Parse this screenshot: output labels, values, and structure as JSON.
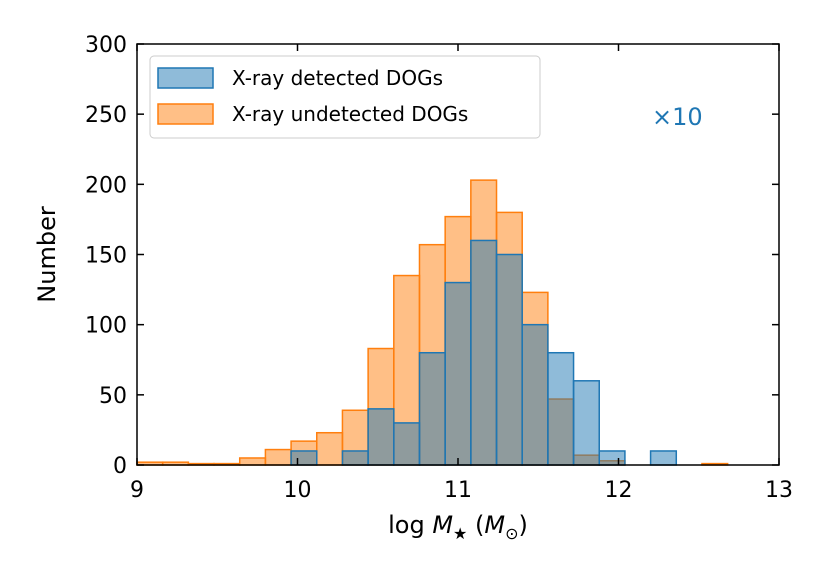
{
  "chart_data": {
    "type": "bar",
    "subtype": "histogram-overlay",
    "xlabel": "log M★ (M⊙)",
    "xlabel_parts": {
      "prefix": "log ",
      "var": "M",
      "sub": "★",
      "unit_open": " (",
      "unit_var": "M",
      "unit_sub": "⊙",
      "unit_close": ")"
    },
    "ylabel": "Number",
    "xlim": [
      9,
      13
    ],
    "ylim": [
      0,
      300
    ],
    "xticks": [
      9,
      10,
      11,
      12,
      13
    ],
    "yticks": [
      0,
      50,
      100,
      150,
      200,
      250,
      300
    ],
    "annotation": "×10",
    "legend_position": "top-left",
    "grid": false,
    "series": [
      {
        "name": "X-ray undetected DOGs",
        "color": "#ff7f0e",
        "bins": [
          {
            "x0": 9.0,
            "x1": 9.16,
            "value": 2
          },
          {
            "x0": 9.16,
            "x1": 9.32,
            "value": 2
          },
          {
            "x0": 9.32,
            "x1": 9.48,
            "value": 1
          },
          {
            "x0": 9.48,
            "x1": 9.64,
            "value": 1
          },
          {
            "x0": 9.64,
            "x1": 9.8,
            "value": 5
          },
          {
            "x0": 9.8,
            "x1": 9.96,
            "value": 11
          },
          {
            "x0": 9.96,
            "x1": 10.12,
            "value": 17
          },
          {
            "x0": 10.12,
            "x1": 10.28,
            "value": 23
          },
          {
            "x0": 10.28,
            "x1": 10.44,
            "value": 39
          },
          {
            "x0": 10.44,
            "x1": 10.6,
            "value": 83
          },
          {
            "x0": 10.6,
            "x1": 10.76,
            "value": 135
          },
          {
            "x0": 10.76,
            "x1": 10.92,
            "value": 157
          },
          {
            "x0": 10.92,
            "x1": 11.08,
            "value": 177
          },
          {
            "x0": 11.08,
            "x1": 11.24,
            "value": 203
          },
          {
            "x0": 11.24,
            "x1": 11.4,
            "value": 180
          },
          {
            "x0": 11.4,
            "x1": 11.56,
            "value": 123
          },
          {
            "x0": 11.56,
            "x1": 11.72,
            "value": 47
          },
          {
            "x0": 11.72,
            "x1": 11.88,
            "value": 7
          },
          {
            "x0": 11.88,
            "x1": 12.04,
            "value": 3
          },
          {
            "x0": 12.52,
            "x1": 12.68,
            "value": 1
          }
        ]
      },
      {
        "name": "X-ray detected DOGs",
        "color": "#1f77b4",
        "bins": [
          {
            "x0": 9.96,
            "x1": 10.12,
            "value": 10
          },
          {
            "x0": 10.28,
            "x1": 10.44,
            "value": 10
          },
          {
            "x0": 10.44,
            "x1": 10.6,
            "value": 40
          },
          {
            "x0": 10.6,
            "x1": 10.76,
            "value": 30
          },
          {
            "x0": 10.76,
            "x1": 10.92,
            "value": 80
          },
          {
            "x0": 10.92,
            "x1": 11.08,
            "value": 130
          },
          {
            "x0": 11.08,
            "x1": 11.24,
            "value": 160
          },
          {
            "x0": 11.24,
            "x1": 11.4,
            "value": 150
          },
          {
            "x0": 11.4,
            "x1": 11.56,
            "value": 100
          },
          {
            "x0": 11.56,
            "x1": 11.72,
            "value": 80
          },
          {
            "x0": 11.72,
            "x1": 11.88,
            "value": 60
          },
          {
            "x0": 11.88,
            "x1": 12.04,
            "value": 10
          },
          {
            "x0": 12.2,
            "x1": 12.36,
            "value": 10
          }
        ]
      }
    ],
    "legend": [
      "X-ray detected DOGs",
      "X-ray undetected DOGs"
    ]
  }
}
